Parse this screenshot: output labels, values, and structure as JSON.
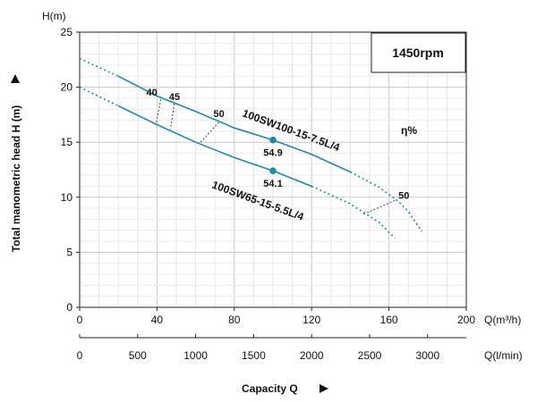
{
  "chart_data": {
    "type": "line",
    "x_axis_label": "Q(m³/h)",
    "x_axis_ticks": [
      0,
      40,
      80,
      120,
      160,
      200
    ],
    "secondary_x_axis_label": "Q(l/min)",
    "secondary_x_ticks": [
      0,
      500,
      1000,
      1500,
      2000,
      2500,
      3000
    ],
    "y_axis_label": "H(m)",
    "y_axis_title": "Total manometric head H (m)",
    "y_axis_ticks": [
      0,
      5,
      10,
      15,
      20,
      25
    ],
    "xlim": [
      0,
      200
    ],
    "ylim": [
      0,
      25
    ],
    "x_title": "Capacity Q",
    "speed_label": "1450rpm",
    "efficiency_label": "η%",
    "grid": true,
    "series": [
      {
        "name": "100SW100-15-7.5L/4",
        "color": "#1f8aa6",
        "solid": {
          "x": [
            20,
            40,
            60,
            80,
            100,
            120,
            140
          ],
          "y": [
            21.0,
            19.2,
            17.8,
            16.3,
            15.2,
            13.9,
            12.3
          ]
        },
        "dashed_left": {
          "x": [
            0,
            20
          ],
          "y": [
            22.6,
            21.0
          ]
        },
        "dashed_right": {
          "x": [
            140,
            155,
            165,
            170,
            177
          ],
          "y": [
            12.3,
            10.9,
            9.6,
            8.7,
            6.9
          ]
        },
        "duty_point": {
          "x": 100,
          "y": 15.2,
          "label": "54.9"
        }
      },
      {
        "name": "100SW65-15-5.5L/4",
        "color": "#1f8aa6",
        "solid": {
          "x": [
            20,
            40,
            60,
            80,
            100,
            120
          ],
          "y": [
            18.3,
            16.6,
            15.0,
            13.6,
            12.4,
            11.0
          ]
        },
        "dashed_left": {
          "x": [
            0,
            20
          ],
          "y": [
            20.0,
            18.3
          ]
        },
        "dashed_right": {
          "x": [
            120,
            140,
            155,
            163
          ],
          "y": [
            11.0,
            9.4,
            7.7,
            6.3
          ]
        },
        "duty_point": {
          "x": 100,
          "y": 12.4,
          "label": "54.1"
        }
      }
    ],
    "efficiency_lines": [
      {
        "label": "40",
        "x": [
          42,
          39.5
        ],
        "y": [
          18.9,
          16.6
        ]
      },
      {
        "label": "45",
        "x": [
          49,
          47
        ],
        "y": [
          18.5,
          16.2
        ]
      },
      {
        "label": "50",
        "x": [
          72,
          62
        ],
        "y": [
          16.8,
          14.9
        ]
      },
      {
        "label": "50",
        "x": [
          163,
          146
        ],
        "y": [
          9.7,
          8.4
        ]
      }
    ]
  }
}
